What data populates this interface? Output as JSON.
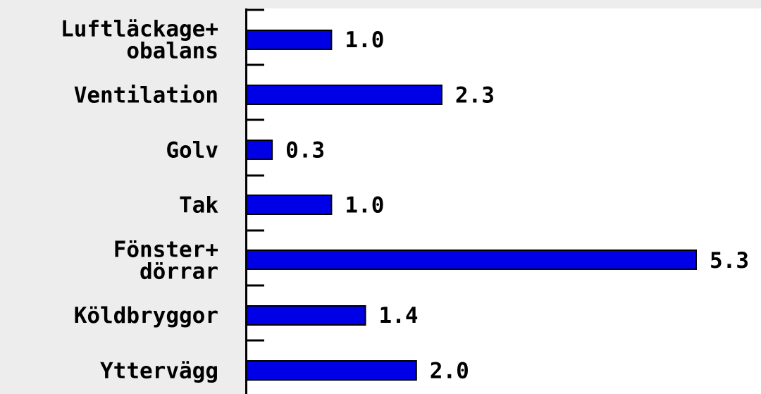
{
  "chart_data": {
    "type": "bar",
    "orientation": "horizontal",
    "title": "",
    "xlabel": "",
    "ylabel": "",
    "categories": [
      [
        "Luftläckage+",
        "obalans"
      ],
      [
        "Ventilation"
      ],
      [
        "Golv"
      ],
      [
        "Tak"
      ],
      [
        "Fönster+",
        "dörrar"
      ],
      [
        "Köldbryggor"
      ],
      [
        "Yttervägg"
      ]
    ],
    "values": [
      1.0,
      2.3,
      0.3,
      1.0,
      5.3,
      1.4,
      2.0
    ],
    "value_labels": [
      "1.0",
      "2.3",
      "0.3",
      "1.0",
      "5.3",
      "1.4",
      "2.0"
    ],
    "xlim": [
      0,
      5.3
    ],
    "grid": false,
    "legend": "none",
    "colors": {
      "bar": "#0000e6",
      "plot_background": "#ffffff",
      "page_background": "#ededed"
    }
  }
}
